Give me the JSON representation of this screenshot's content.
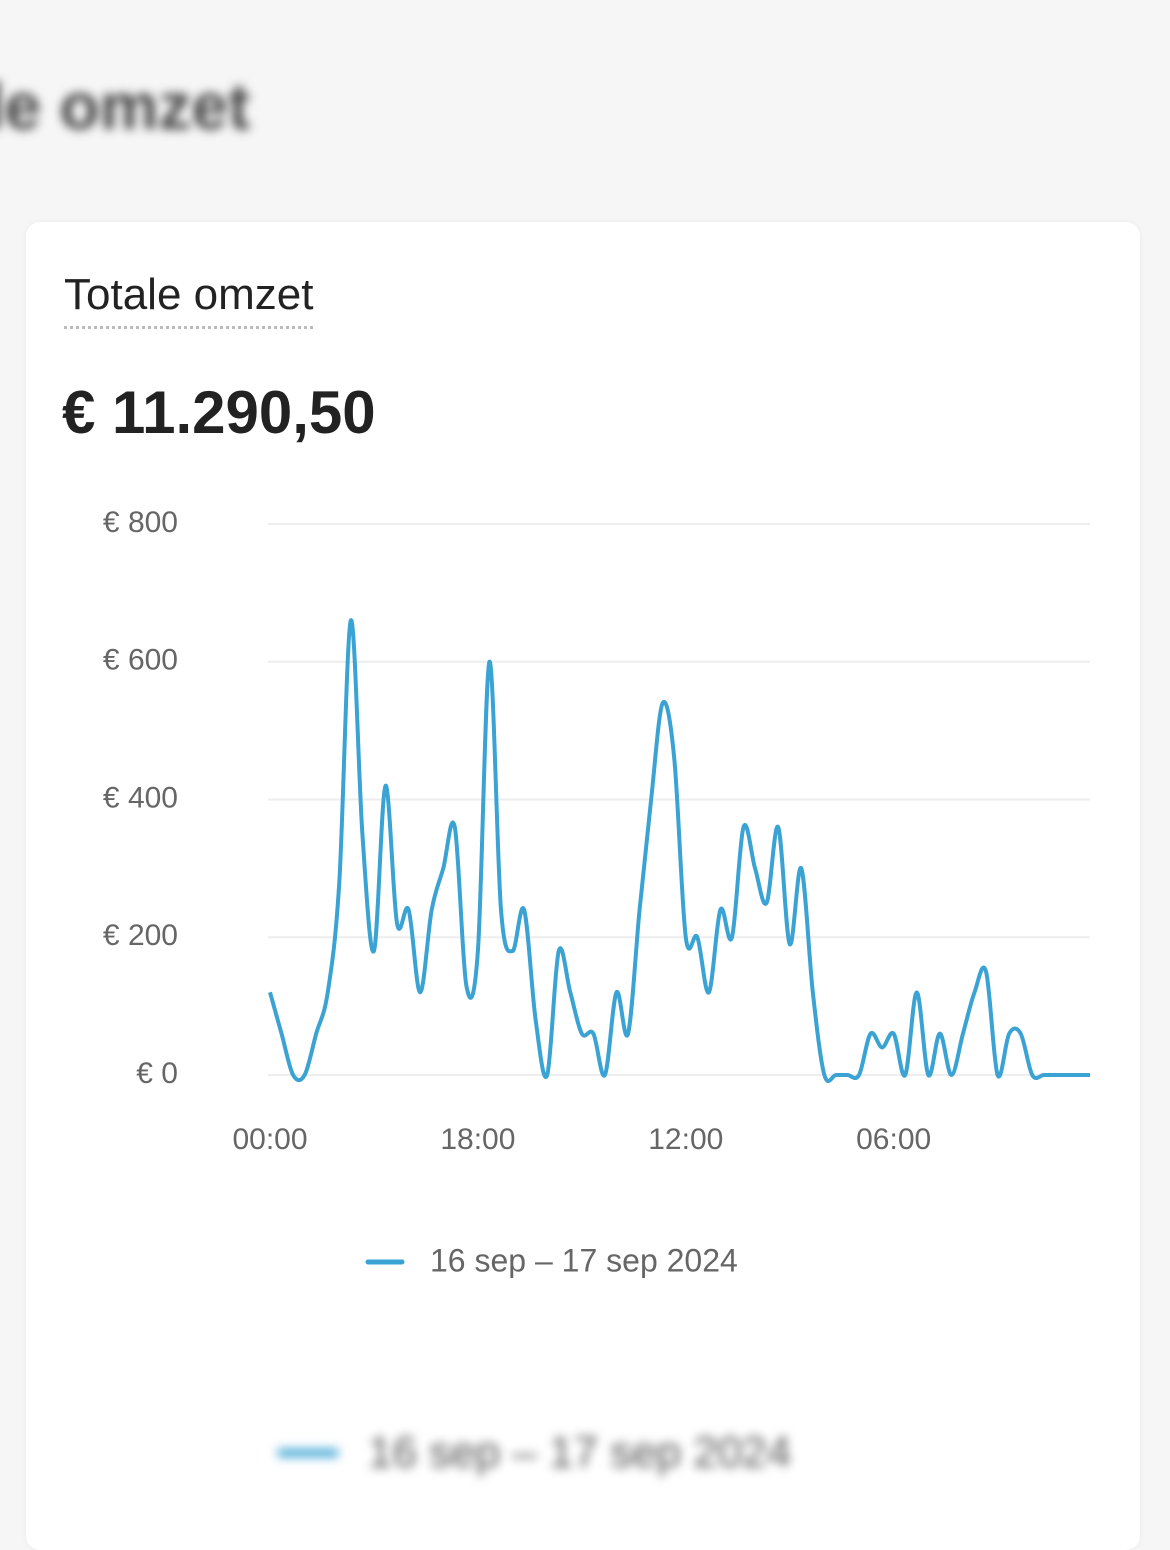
{
  "page": {
    "background_title": "le omzet"
  },
  "card": {
    "title": "Totale omzet",
    "total": "€ 11.290,50"
  },
  "chart_data": {
    "type": "line",
    "categories": [
      "00:00",
      null,
      null,
      null,
      null,
      null,
      null,
      null,
      null,
      null,
      null,
      null,
      null,
      null,
      null,
      null,
      null,
      null,
      "18:00",
      null,
      null,
      null,
      null,
      null,
      null,
      null,
      null,
      null,
      null,
      null,
      null,
      null,
      null,
      null,
      null,
      null,
      "12:00",
      null,
      null,
      null,
      null,
      null,
      null,
      null,
      null,
      null,
      null,
      null,
      null,
      null,
      null,
      null,
      null,
      null,
      "06:00",
      null,
      null,
      null,
      null,
      null,
      null,
      null,
      null,
      null,
      null,
      null,
      null,
      null,
      null,
      null,
      null,
      null
    ],
    "series": [
      {
        "name": "16 sep – 17 sep 2024",
        "color": "#3aa3d4",
        "values": [
          120,
          60,
          0,
          0,
          60,
          120,
          280,
          660,
          350,
          180,
          420,
          220,
          240,
          120,
          240,
          300,
          360,
          130,
          180,
          600,
          240,
          180,
          240,
          80,
          0,
          180,
          120,
          60,
          60,
          0,
          120,
          60,
          240,
          400,
          540,
          460,
          200,
          200,
          120,
          240,
          200,
          360,
          300,
          250,
          360,
          190,
          300,
          120,
          0,
          0,
          0,
          0,
          60,
          40,
          60,
          0,
          120,
          0,
          60,
          0,
          60,
          120,
          150,
          0,
          60,
          60,
          0,
          0,
          0,
          0,
          0,
          0
        ]
      }
    ],
    "ylim": [
      0,
      800
    ],
    "yticks": [
      {
        "value": 0,
        "label": "€ 0"
      },
      {
        "value": 200,
        "label": "€ 200"
      },
      {
        "value": 400,
        "label": "€ 400"
      },
      {
        "value": 600,
        "label": "€ 600"
      },
      {
        "value": 800,
        "label": "€ 800"
      }
    ],
    "grid": true
  }
}
